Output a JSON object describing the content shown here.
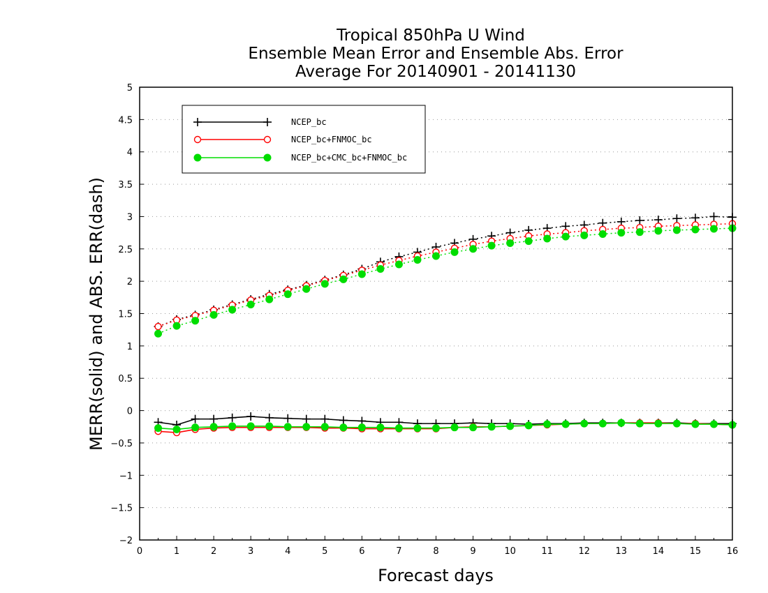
{
  "chart_data": {
    "type": "line",
    "title_lines": [
      "Tropical 850hPa U Wind",
      "Ensemble Mean Error and Ensemble Abs. Error",
      "Average For 20140901 - 20141130"
    ],
    "xlabel": "Forecast days",
    "ylabel": "MERR(solid) and ABS. ERR(dash)",
    "xlim": [
      0,
      16
    ],
    "ylim": [
      -2,
      5
    ],
    "x_ticks": [
      "0",
      "1",
      "2",
      "3",
      "4",
      "5",
      "6",
      "7",
      "8",
      "9",
      "10",
      "11",
      "12",
      "13",
      "14",
      "15",
      "16"
    ],
    "y_ticks": [
      "5",
      "4.5",
      "4",
      "3.5",
      "3",
      "2.5",
      "2",
      "1.5",
      "1",
      "0.5",
      "0",
      "−0.5",
      "−1",
      "−1.5",
      "−2"
    ],
    "grid": true,
    "legend_position": "top-left",
    "x": [
      0.5,
      1,
      1.5,
      2,
      2.5,
      3,
      3.5,
      4,
      4.5,
      5,
      5.5,
      6,
      6.5,
      7,
      7.5,
      8,
      8.5,
      9,
      9.5,
      10,
      10.5,
      11,
      11.5,
      12,
      12.5,
      13,
      13.5,
      14,
      14.5,
      15,
      15.5,
      16
    ],
    "series": [
      {
        "name": "NCEP_bc",
        "color": "#000000",
        "marker": "plus",
        "merr": [
          -0.18,
          -0.22,
          -0.13,
          -0.13,
          -0.11,
          -0.09,
          -0.11,
          -0.12,
          -0.13,
          -0.13,
          -0.15,
          -0.16,
          -0.18,
          -0.18,
          -0.2,
          -0.2,
          -0.2,
          -0.19,
          -0.2,
          -0.2,
          -0.21,
          -0.2,
          -0.2,
          -0.19,
          -0.19,
          -0.19,
          -0.19,
          -0.19,
          -0.19,
          -0.2,
          -0.2,
          -0.2
        ],
        "abs_err": [
          1.3,
          1.41,
          1.48,
          1.56,
          1.64,
          1.72,
          1.8,
          1.87,
          1.94,
          2.02,
          2.1,
          2.19,
          2.3,
          2.38,
          2.45,
          2.53,
          2.59,
          2.65,
          2.7,
          2.75,
          2.79,
          2.82,
          2.85,
          2.87,
          2.9,
          2.92,
          2.94,
          2.95,
          2.97,
          2.98,
          3.0,
          2.99
        ]
      },
      {
        "name": "NCEP_bc+FNMOC_bc",
        "color": "#ff0000",
        "marker": "open-circle",
        "merr": [
          -0.32,
          -0.34,
          -0.29,
          -0.27,
          -0.26,
          -0.26,
          -0.26,
          -0.26,
          -0.26,
          -0.27,
          -0.27,
          -0.28,
          -0.28,
          -0.28,
          -0.28,
          -0.28,
          -0.26,
          -0.25,
          -0.25,
          -0.24,
          -0.23,
          -0.22,
          -0.21,
          -0.2,
          -0.2,
          -0.19,
          -0.19,
          -0.19,
          -0.2,
          -0.2,
          -0.21,
          -0.22
        ],
        "abs_err": [
          1.3,
          1.4,
          1.47,
          1.55,
          1.63,
          1.71,
          1.78,
          1.86,
          1.93,
          2.01,
          2.09,
          2.17,
          2.25,
          2.32,
          2.39,
          2.45,
          2.51,
          2.57,
          2.62,
          2.66,
          2.7,
          2.73,
          2.75,
          2.78,
          2.8,
          2.82,
          2.83,
          2.85,
          2.86,
          2.87,
          2.88,
          2.89
        ]
      },
      {
        "name": "NCEP_bc+CMC_bc+FNMOC_bc",
        "color": "#00dd00",
        "marker": "filled-circle",
        "merr": [
          -0.27,
          -0.29,
          -0.26,
          -0.25,
          -0.24,
          -0.24,
          -0.24,
          -0.25,
          -0.25,
          -0.25,
          -0.26,
          -0.26,
          -0.26,
          -0.27,
          -0.27,
          -0.27,
          -0.26,
          -0.26,
          -0.25,
          -0.24,
          -0.23,
          -0.21,
          -0.21,
          -0.2,
          -0.2,
          -0.19,
          -0.2,
          -0.2,
          -0.2,
          -0.21,
          -0.21,
          -0.22
        ],
        "abs_err": [
          1.19,
          1.31,
          1.39,
          1.48,
          1.56,
          1.64,
          1.72,
          1.8,
          1.88,
          1.96,
          2.03,
          2.11,
          2.19,
          2.26,
          2.33,
          2.39,
          2.45,
          2.5,
          2.55,
          2.59,
          2.62,
          2.66,
          2.69,
          2.71,
          2.73,
          2.75,
          2.76,
          2.78,
          2.79,
          2.8,
          2.81,
          2.82
        ]
      }
    ]
  }
}
